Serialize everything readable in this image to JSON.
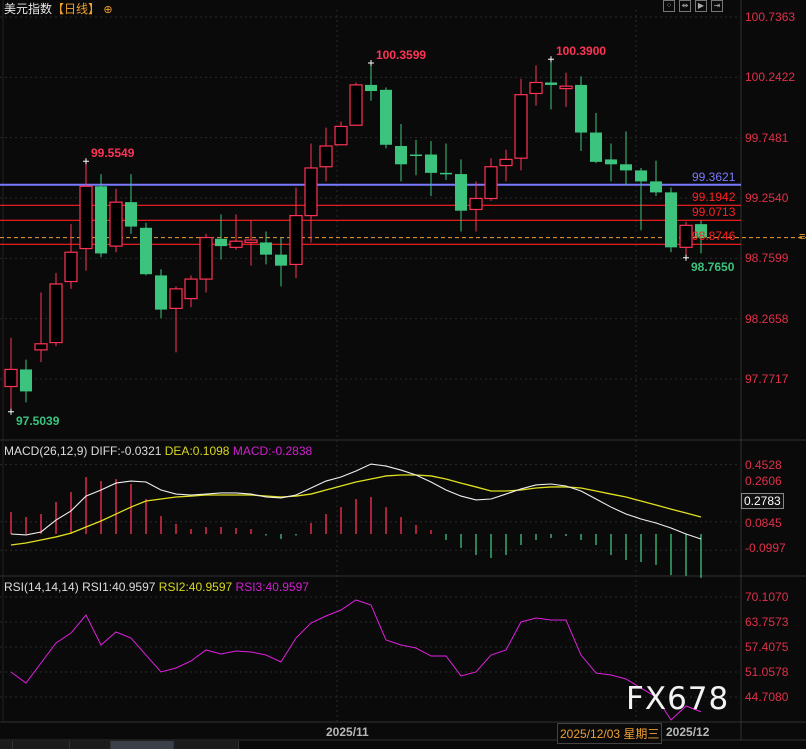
{
  "header": {
    "title": "美元指数",
    "period": "【日线】",
    "icon": "crosshair-circle-icon",
    "toolbar": [
      {
        "icon": "grid-icon",
        "glyph": "⁘"
      },
      {
        "icon": "fit-icon",
        "glyph": "⇹"
      },
      {
        "icon": "play-icon",
        "glyph": "▶"
      },
      {
        "icon": "forward-icon",
        "glyph": "⇥"
      }
    ]
  },
  "colors": {
    "up": "#ff3355",
    "down": "#3cc47e",
    "diff": "#f0f0f0",
    "dea": "#e0e020",
    "rsi": "#e020e0",
    "support": "#ff2020",
    "resistance_blue": "#7a7aff",
    "current": "#f0a030"
  },
  "price_axis": {
    "labels": [
      "100.7363",
      "100.2422",
      "99.7481",
      "99.2540",
      "98.7599",
      "98.2658",
      "97.7717"
    ],
    "range": [
      97.7717,
      100.7363
    ]
  },
  "price_chart": {
    "type": "candlestick",
    "candles_ohlc": [
      [
        97.71,
        98.11,
        97.5039,
        97.85
      ],
      [
        97.85,
        97.93,
        97.58,
        97.67
      ],
      [
        98.01,
        98.48,
        97.91,
        98.06
      ],
      [
        98.07,
        98.64,
        98.04,
        98.55
      ],
      [
        98.57,
        99.04,
        98.51,
        98.81
      ],
      [
        98.84,
        99.5549,
        98.66,
        99.35
      ],
      [
        99.35,
        99.45,
        98.77,
        98.8
      ],
      [
        98.86,
        99.33,
        98.81,
        99.22
      ],
      [
        99.22,
        99.45,
        98.96,
        99.02
      ],
      [
        99.01,
        99.05,
        98.62,
        98.63
      ],
      [
        98.62,
        98.67,
        98.27,
        98.34
      ],
      [
        98.35,
        98.53,
        97.99,
        98.51
      ],
      [
        98.43,
        98.62,
        98.36,
        98.59
      ],
      [
        98.59,
        98.96,
        98.48,
        98.93
      ],
      [
        98.92,
        99.12,
        98.75,
        98.86
      ],
      [
        98.85,
        99.12,
        98.83,
        98.9
      ],
      [
        98.89,
        99.07,
        98.7,
        98.91
      ],
      [
        98.89,
        98.98,
        98.71,
        98.79
      ],
      [
        98.79,
        98.93,
        98.53,
        98.7
      ],
      [
        98.71,
        99.34,
        98.6,
        99.11
      ],
      [
        99.11,
        99.7,
        98.89,
        99.5
      ],
      [
        99.51,
        99.83,
        99.39,
        99.68
      ],
      [
        99.69,
        99.88,
        99.69,
        99.84
      ],
      [
        99.85,
        100.2,
        99.85,
        100.18
      ],
      [
        100.18,
        100.3599,
        100.05,
        100.13
      ],
      [
        100.14,
        100.16,
        99.66,
        99.69
      ],
      [
        99.68,
        99.86,
        99.39,
        99.53
      ],
      [
        99.61,
        99.73,
        99.44,
        99.6
      ],
      [
        99.61,
        99.72,
        99.27,
        99.46
      ],
      [
        99.46,
        99.7,
        99.4,
        99.45
      ],
      [
        99.45,
        99.57,
        98.98,
        99.15
      ],
      [
        99.16,
        99.39,
        98.98,
        99.25
      ],
      [
        99.25,
        99.58,
        99.23,
        99.51
      ],
      [
        99.52,
        99.65,
        99.39,
        99.57
      ],
      [
        99.58,
        100.23,
        99.48,
        100.1
      ],
      [
        100.11,
        100.34,
        100.01,
        100.2
      ],
      [
        100.2,
        100.39,
        99.98,
        100.18
      ],
      [
        100.15,
        100.28,
        100.0,
        100.17
      ],
      [
        100.18,
        100.25,
        99.64,
        99.79
      ],
      [
        99.79,
        99.95,
        99.54,
        99.55
      ],
      [
        99.57,
        99.7,
        99.39,
        99.53
      ],
      [
        99.53,
        99.8,
        99.36,
        99.48
      ],
      [
        99.48,
        99.5,
        98.99,
        99.39
      ],
      [
        99.39,
        99.56,
        99.27,
        99.3
      ],
      [
        99.3,
        99.34,
        98.81,
        98.85
      ],
      [
        98.85,
        99.06,
        98.765,
        99.03
      ],
      [
        99.04,
        99.07,
        98.8,
        98.93
      ]
    ],
    "annotations": [
      {
        "text": "99.5549",
        "candle": 5,
        "kind": "high"
      },
      {
        "text": "100.3599",
        "candle": 24,
        "kind": "high"
      },
      {
        "text": "100.3900",
        "candle": 36,
        "kind": "high"
      },
      {
        "text": "97.5039",
        "candle": 0,
        "kind": "low"
      },
      {
        "text": "98.7650",
        "candle": 45,
        "kind": "low"
      }
    ],
    "levels": [
      {
        "price": 99.3621,
        "label": "99.3621",
        "color": "#7a7aff"
      },
      {
        "price": 99.1942,
        "label": "99.1942",
        "color": "#ff2020"
      },
      {
        "price": 99.0713,
        "label": "99.0713",
        "color": "#ff2020"
      },
      {
        "price": 98.8746,
        "label": "98.8746",
        "color": "#ff2020"
      }
    ],
    "current_price": 98.93
  },
  "macd": {
    "label": "MACD(26,12,9)",
    "diff_label": "DIFF:-0.0321",
    "dea_label": "DEA:0.1098",
    "macd_label": "MACD:-0.2838",
    "axis_labels": [
      "0.4528",
      "0.2606",
      "0.0845",
      "-0.0997"
    ],
    "current_box": "0.2783",
    "diff": [
      0,
      -0.006,
      0.013,
      0.09,
      0.149,
      0.245,
      0.284,
      0.329,
      0.342,
      0.336,
      0.284,
      0.258,
      0.252,
      0.258,
      0.265,
      0.265,
      0.258,
      0.239,
      0.233,
      0.252,
      0.297,
      0.342,
      0.368,
      0.407,
      0.452,
      0.439,
      0.413,
      0.381,
      0.336,
      0.284,
      0.245,
      0.22,
      0.226,
      0.258,
      0.291,
      0.317,
      0.323,
      0.31,
      0.278,
      0.226,
      0.174,
      0.129,
      0.097,
      0.071,
      0.039,
      0.0,
      -0.0321
    ],
    "dea": [
      -0.071,
      -0.058,
      -0.039,
      -0.019,
      0.006,
      0.045,
      0.084,
      0.129,
      0.174,
      0.213,
      0.226,
      0.239,
      0.245,
      0.252,
      0.252,
      0.252,
      0.252,
      0.245,
      0.239,
      0.245,
      0.258,
      0.284,
      0.31,
      0.336,
      0.355,
      0.375,
      0.381,
      0.381,
      0.375,
      0.355,
      0.329,
      0.304,
      0.278,
      0.278,
      0.284,
      0.297,
      0.304,
      0.304,
      0.297,
      0.278,
      0.258,
      0.239,
      0.213,
      0.187,
      0.161,
      0.136,
      0.1098
    ],
    "hist": [
      0.142,
      0.11,
      0.129,
      0.207,
      0.271,
      0.368,
      0.342,
      0.355,
      0.323,
      0.226,
      0.116,
      0.065,
      0.032,
      0.045,
      0.045,
      0.039,
      0.032,
      -0.01,
      -0.032,
      -0.01,
      0.071,
      0.129,
      0.174,
      0.226,
      0.239,
      0.174,
      0.11,
      0.058,
      0.026,
      -0.039,
      -0.09,
      -0.136,
      -0.155,
      -0.136,
      -0.071,
      -0.039,
      -0.026,
      -0.013,
      -0.039,
      -0.071,
      -0.136,
      -0.168,
      -0.181,
      -0.2,
      -0.265,
      -0.27,
      -0.2838
    ]
  },
  "rsi": {
    "label": "RSI(14,14,14)",
    "rsi1_label": "RSI1:40.9597",
    "rsi2_label": "RSI2:40.9597",
    "rsi3_label": "RSI3:40.9597",
    "axis_labels": [
      "70.1070",
      "63.7573",
      "57.4075",
      "51.0578",
      "44.7080"
    ],
    "values": [
      51.06,
      48.26,
      53.34,
      58.42,
      60.96,
      65.53,
      57.91,
      61.22,
      59.69,
      55.37,
      51.06,
      52.07,
      53.85,
      56.65,
      55.63,
      56.39,
      56.14,
      55.37,
      53.6,
      59.69,
      63.5,
      65.28,
      66.8,
      69.35,
      68.08,
      59.18,
      57.91,
      57.15,
      55.12,
      55.12,
      50.05,
      51.06,
      55.37,
      56.65,
      63.76,
      64.77,
      64.27,
      64.27,
      55.37,
      50.8,
      50.3,
      49.28,
      46.99,
      44.71,
      38.87,
      42.42,
      40.9597
    ]
  },
  "date_axis": {
    "labels": [
      {
        "text": "2025/11",
        "candle": 22
      },
      {
        "text": "2025/12",
        "candle": 42
      }
    ],
    "crosshair_date": "2025/12/03 星期三"
  },
  "watermark": "FX678"
}
